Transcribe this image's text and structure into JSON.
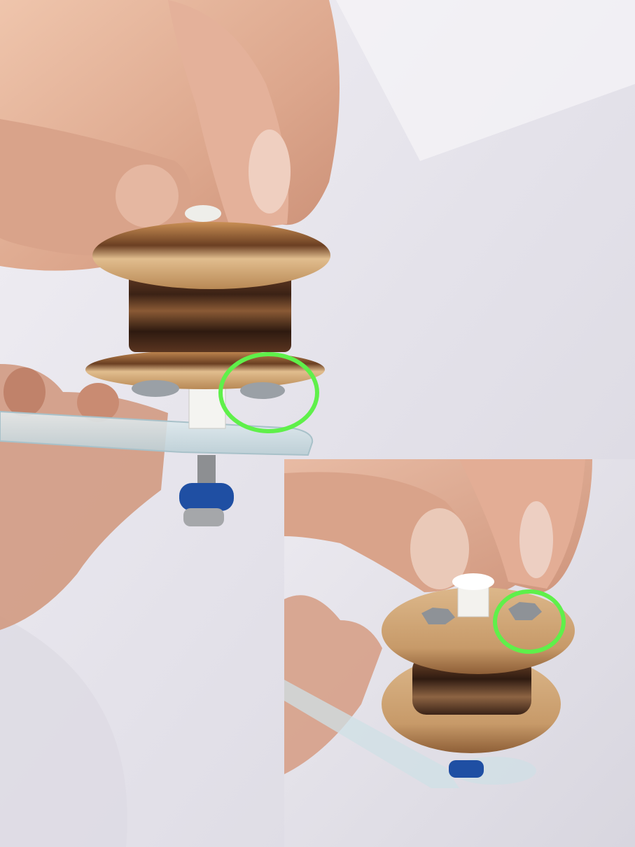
{
  "photos": [
    {
      "id": "main",
      "subject": "hand-holding-wooden-spool-on-acrylic-plate",
      "highlight": {
        "shape": "circle",
        "color": "#5ff04a"
      }
    },
    {
      "id": "inset",
      "subject": "top-view-fingers-tightening-nut-on-spool",
      "highlight": {
        "shape": "circle",
        "color": "#5ff04a"
      }
    }
  ],
  "colors": {
    "cloth": "#e9e7ee",
    "skin": "#e2b199",
    "wood_light": "#d9ae7c",
    "wood_dark": "#3a2216",
    "acrylic": "#cfe0e6",
    "knob_blue": "#1f4fa3",
    "highlight": "#5ff04a"
  }
}
